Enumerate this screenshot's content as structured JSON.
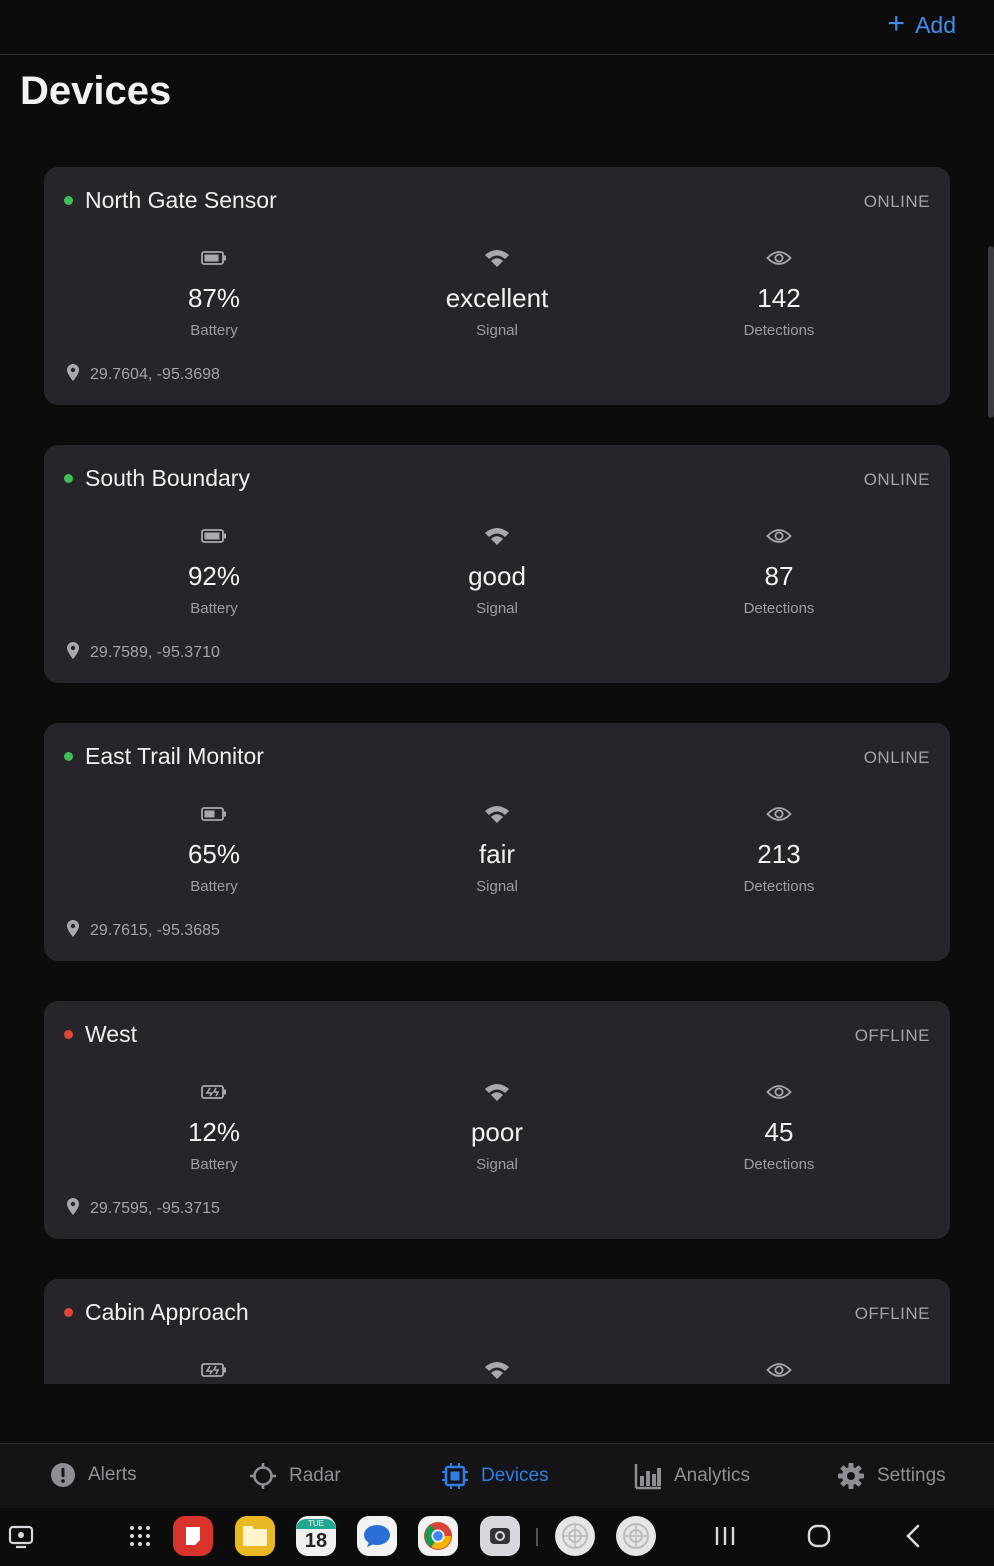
{
  "header": {
    "add_label": "Add",
    "title": "Devices"
  },
  "colors": {
    "online": "#3fbf5a",
    "offline": "#e0453a",
    "accent": "#3d8ef0"
  },
  "labels": {
    "battery": "Battery",
    "signal": "Signal",
    "detections": "Detections"
  },
  "devices": [
    {
      "name": "North Gate Sensor",
      "status": "ONLINE",
      "battery": "87%",
      "battery_level": 0.87,
      "signal": "excellent",
      "detections": "142",
      "location": "29.7604, -95.3698"
    },
    {
      "name": "South Boundary",
      "status": "ONLINE",
      "battery": "92%",
      "battery_level": 0.92,
      "signal": "good",
      "detections": "87",
      "location": "29.7589, -95.3710"
    },
    {
      "name": "East Trail Monitor",
      "status": "ONLINE",
      "battery": "65%",
      "battery_level": 0.65,
      "signal": "fair",
      "detections": "213",
      "location": "29.7615, -95.3685"
    },
    {
      "name": "West",
      "status": "OFFLINE",
      "battery": "12%",
      "battery_level": 0.12,
      "signal": "poor",
      "detections": "45",
      "location": "29.7595, -95.3715"
    },
    {
      "name": "Cabin Approach",
      "status": "OFFLINE",
      "battery": "",
      "battery_level": 0.1,
      "signal": "",
      "detections": "",
      "location": ""
    }
  ],
  "nav": [
    {
      "label": "Alerts",
      "icon": "alert-icon"
    },
    {
      "label": "Radar",
      "icon": "radar-icon"
    },
    {
      "label": "Devices",
      "icon": "chip-icon",
      "active": true
    },
    {
      "label": "Analytics",
      "icon": "bar-chart-icon"
    },
    {
      "label": "Settings",
      "icon": "gear-icon"
    }
  ],
  "taskbar": {
    "calendar_day": "18",
    "calendar_weekday": "TUE"
  }
}
